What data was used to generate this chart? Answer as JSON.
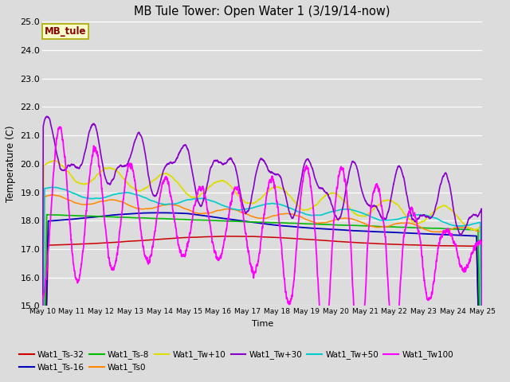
{
  "title": "MB Tule Tower: Open Water 1 (3/19/14-now)",
  "xlabel": "Time",
  "ylabel": "Temperature (C)",
  "ylim": [
    15.0,
    25.0
  ],
  "xlim": [
    0,
    15
  ],
  "yticks": [
    15.0,
    16.0,
    17.0,
    18.0,
    19.0,
    20.0,
    21.0,
    22.0,
    23.0,
    24.0,
    25.0
  ],
  "xtick_labels": [
    "May 10",
    "May 11",
    "May 12",
    "May 13",
    "May 14",
    "May 15",
    "May 16",
    "May 17",
    "May 18",
    "May 19",
    "May 20",
    "May 21",
    "May 22",
    "May 23",
    "May 24",
    "May 25"
  ],
  "bg_color": "#dcdcdc",
  "grid_color": "#ffffff",
  "series_colors": {
    "Wat1_Ts-32": "#cc0000",
    "Wat1_Ts-16": "#0000bb",
    "Wat1_Ts-8": "#00bb00",
    "Wat1_Ts0": "#ff8800",
    "Wat1_Tw+10": "#dddd00",
    "Wat1_Tw+30": "#8800cc",
    "Wat1_Tw+50": "#00cccc",
    "Wat1_Tw100": "#ff00ff"
  },
  "legend_label": "MB_tule",
  "legend_bg": "#ffffcc",
  "legend_edge": "#aaaa00",
  "legend_text_color": "#880000"
}
